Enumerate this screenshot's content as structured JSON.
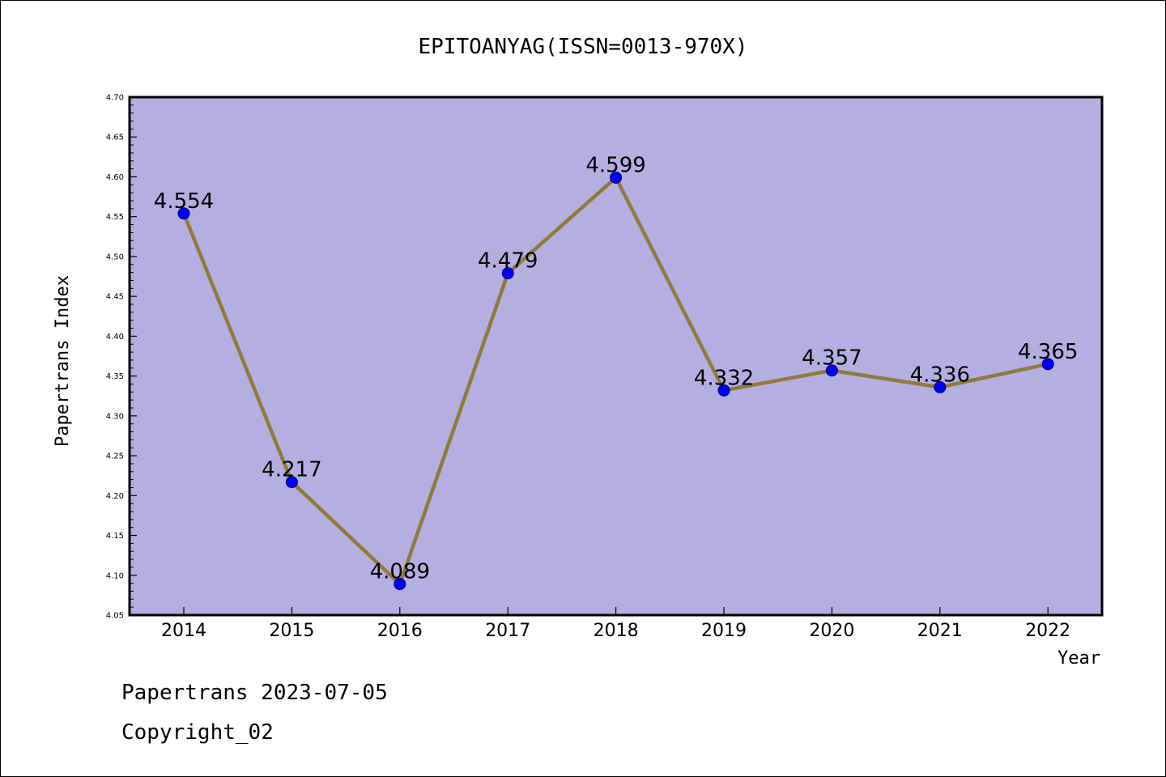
{
  "footer": {
    "line1": "Papertrans 2023-07-05",
    "line2": "Copyright_02"
  },
  "colors": {
    "plot_background": "#b5aee1",
    "line": "#8f7a3a",
    "marker": "#0000ff"
  },
  "chart_data": {
    "type": "line",
    "title": "EPITOANYAG(ISSN=0013-970X)",
    "xlabel": "Year",
    "ylabel": "Papertrans Index",
    "x": [
      "2014",
      "2015",
      "2016",
      "2017",
      "2018",
      "2019",
      "2020",
      "2021",
      "2022"
    ],
    "series": [
      {
        "values": [
          4.554,
          4.217,
          4.089,
          4.479,
          4.599,
          4.332,
          4.357,
          4.336,
          4.365
        ],
        "labels": [
          "4.554",
          "4.217",
          "4.089",
          "4.479",
          "4.599",
          "4.332",
          "4.357",
          "4.336",
          "4.365"
        ]
      }
    ],
    "ylim": [
      4.05,
      4.7
    ],
    "yticks": [
      "4.05",
      "4.10",
      "4.15",
      "4.20",
      "4.25",
      "4.30",
      "4.35",
      "4.40",
      "4.45",
      "4.50",
      "4.55",
      "4.60",
      "4.65",
      "4.70"
    ],
    "grid": false,
    "legend": "none"
  }
}
